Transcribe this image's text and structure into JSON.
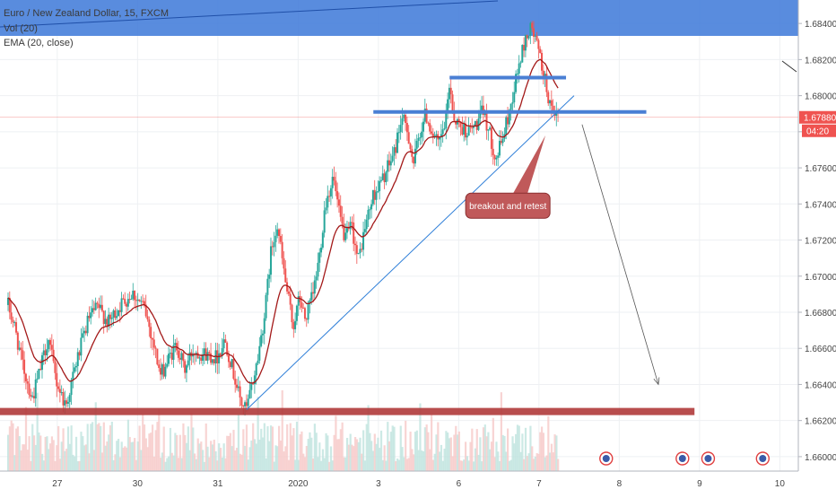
{
  "header": {
    "title": "Euro / New Zealand Dollar, 15, FXCM",
    "indicator_vol": "Vol (20)",
    "indicator_ema": "EMA (20, close)"
  },
  "colors": {
    "up": "#26a69a",
    "down": "#ef5350",
    "ema": "#a31919",
    "header_band": "#3c78d8",
    "level": "#4a7fd4",
    "support": "#b03a3a",
    "trendline": "#2f7fd8",
    "callout": "#c0595a",
    "last_price": "#ef5350"
  },
  "chart_data": {
    "type": "candlestick",
    "symbol": "EURNZD",
    "timeframe": "15",
    "source": "FXCM",
    "y_axis": {
      "range": [
        1.6592,
        1.6853
      ],
      "ticks": [
        "1.68400",
        "1.68200",
        "1.68000",
        "1.67800",
        "1.67600",
        "1.67400",
        "1.67200",
        "1.67000",
        "1.66800",
        "1.66600",
        "1.66400",
        "1.66200",
        "1.66000"
      ]
    },
    "x_axis": {
      "ticks": [
        {
          "label": "27",
          "t": 0.3
        },
        {
          "label": "30",
          "t": 1.3
        },
        {
          "label": "31",
          "t": 2.3
        },
        {
          "label": "2020",
          "t": 3.3
        },
        {
          "label": "3",
          "t": 4.3
        },
        {
          "label": "6",
          "t": 5.3
        },
        {
          "label": "7",
          "t": 6.3
        },
        {
          "label": "8",
          "t": 7.3
        },
        {
          "label": "9",
          "t": 8.3
        },
        {
          "label": "10",
          "t": 9.3
        }
      ]
    },
    "price_path": [
      [
        0.0,
        1.6684
      ],
      [
        0.08,
        1.6672
      ],
      [
        0.18,
        1.6651
      ],
      [
        0.3,
        1.6632
      ],
      [
        0.4,
        1.6648
      ],
      [
        0.5,
        1.6666
      ],
      [
        0.6,
        1.6642
      ],
      [
        0.72,
        1.6628
      ],
      [
        0.85,
        1.6652
      ],
      [
        1.0,
        1.6676
      ],
      [
        1.12,
        1.6683
      ],
      [
        1.25,
        1.6674
      ],
      [
        1.4,
        1.6684
      ],
      [
        1.55,
        1.6691
      ],
      [
        1.7,
        1.6682
      ],
      [
        1.8,
        1.6665
      ],
      [
        1.9,
        1.6645
      ],
      [
        2.0,
        1.6654
      ],
      [
        2.1,
        1.6662
      ],
      [
        2.2,
        1.6648
      ],
      [
        2.3,
        1.6659
      ],
      [
        2.45,
        1.6657
      ],
      [
        2.6,
        1.6655
      ],
      [
        2.7,
        1.6665
      ],
      [
        2.8,
        1.6648
      ],
      [
        2.9,
        1.663
      ],
      [
        2.97,
        1.6626
      ],
      [
        3.1,
        1.6652
      ],
      [
        3.2,
        1.668
      ],
      [
        3.27,
        1.6712
      ],
      [
        3.35,
        1.673
      ],
      [
        3.45,
        1.6698
      ],
      [
        3.55,
        1.6672
      ],
      [
        3.63,
        1.6688
      ],
      [
        3.7,
        1.6676
      ],
      [
        3.8,
        1.669
      ],
      [
        3.88,
        1.6712
      ],
      [
        3.95,
        1.674
      ],
      [
        4.05,
        1.6755
      ],
      [
        4.12,
        1.6735
      ],
      [
        4.2,
        1.672
      ],
      [
        4.28,
        1.6728
      ],
      [
        4.36,
        1.6708
      ],
      [
        4.45,
        1.6728
      ],
      [
        4.55,
        1.6745
      ],
      [
        4.65,
        1.6752
      ],
      [
        4.75,
        1.6762
      ],
      [
        4.82,
        1.677
      ],
      [
        4.9,
        1.6788
      ],
      [
        4.98,
        1.678
      ],
      [
        5.05,
        1.6762
      ],
      [
        5.12,
        1.6778
      ],
      [
        5.2,
        1.679
      ],
      [
        5.28,
        1.678
      ],
      [
        5.36,
        1.6772
      ],
      [
        5.45,
        1.6785
      ],
      [
        5.5,
        1.6808
      ],
      [
        5.55,
        1.6788
      ],
      [
        5.65,
        1.6782
      ],
      [
        5.75,
        1.678
      ],
      [
        5.85,
        1.6785
      ],
      [
        5.92,
        1.6792
      ],
      [
        6.0,
        1.6778
      ],
      [
        6.08,
        1.6765
      ],
      [
        6.15,
        1.6775
      ],
      [
        6.25,
        1.6792
      ],
      [
        6.32,
        1.6808
      ],
      [
        6.38,
        1.682
      ],
      [
        6.45,
        1.6832
      ],
      [
        6.52,
        1.6838
      ],
      [
        6.6,
        1.6826
      ],
      [
        6.68,
        1.681
      ],
      [
        6.75,
        1.6795
      ],
      [
        6.8,
        1.6785
      ],
      [
        6.85,
        1.679
      ]
    ],
    "ema": {
      "name": "EMA (20, close)",
      "period": 20
    },
    "volume": {
      "name": "Vol (20)",
      "period": 20
    },
    "last_price": {
      "value": "1.67880",
      "price": 1.6788,
      "countdown": "04:20"
    },
    "annotations": [
      {
        "kind": "horizontal-level",
        "price": 1.681,
        "t_start": 5.5,
        "t_end": 6.95
      },
      {
        "kind": "horizontal-level",
        "price": 1.6791,
        "t_start": 4.55,
        "t_end": 7.95
      },
      {
        "kind": "support-zone",
        "price": 1.6625,
        "t_start": -0.15,
        "t_end": 8.55
      },
      {
        "kind": "trendline",
        "from": [
          2.97,
          1.6626
        ],
        "to": [
          7.05,
          1.68
        ]
      },
      {
        "kind": "projection-arrow",
        "from": [
          7.15,
          1.6784
        ],
        "to": [
          8.1,
          1.664
        ]
      },
      {
        "kind": "callout",
        "text": "breakout and retest",
        "at": [
          5.7,
          1.6746
        ],
        "pointer": [
          6.75,
          1.6778
        ]
      }
    ]
  }
}
